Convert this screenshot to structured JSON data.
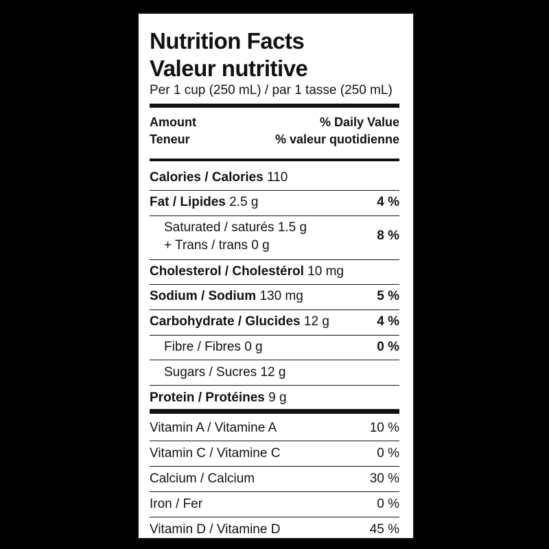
{
  "label": {
    "title_en": "Nutrition Facts",
    "title_fr": "Valeur nutritive",
    "serving": "Per 1 cup (250 mL) / par 1 tasse (250 mL)",
    "header": {
      "amount": "Amount",
      "teneur": "Teneur",
      "dv_en": "% Daily Value",
      "dv_fr": "% valeur quotidienne"
    },
    "calories": {
      "name": "Calories / Calories",
      "amount": "110"
    },
    "fat": {
      "name": "Fat / Lipides",
      "amount": "2.5 g",
      "dv": "4 %"
    },
    "saturated": {
      "name": "Saturated / saturés 1.5 g",
      "trans": "+ Trans / trans 0 g",
      "dv": "8 %"
    },
    "cholesterol": {
      "name": "Cholesterol / Cholestérol",
      "amount": "10 mg"
    },
    "sodium": {
      "name": "Sodium / Sodium",
      "amount": "130 mg",
      "dv": "5 %"
    },
    "carbohydrate": {
      "name": "Carbohydrate / Glucides",
      "amount": "12 g",
      "dv": "4 %"
    },
    "fibre": {
      "name": "Fibre / Fibres 0 g",
      "dv": "0 %"
    },
    "sugars": {
      "name": "Sugars / Sucres 12 g"
    },
    "protein": {
      "name": "Protein / Protéines",
      "amount": "9 g"
    },
    "vitamins": [
      {
        "name": "Vitamin A / Vitamine A",
        "dv": "10 %"
      },
      {
        "name": "Vitamin C / Vitamine C",
        "dv": "0 %"
      },
      {
        "name": "Calcium / Calcium",
        "dv": "30 %"
      },
      {
        "name": "Iron / Fer",
        "dv": "0 %"
      },
      {
        "name": "Vitamin D / Vitamine D",
        "dv": "45 %"
      }
    ]
  },
  "colors": {
    "background": "#000000",
    "panel": "#ffffff",
    "ink": "#111111"
  }
}
